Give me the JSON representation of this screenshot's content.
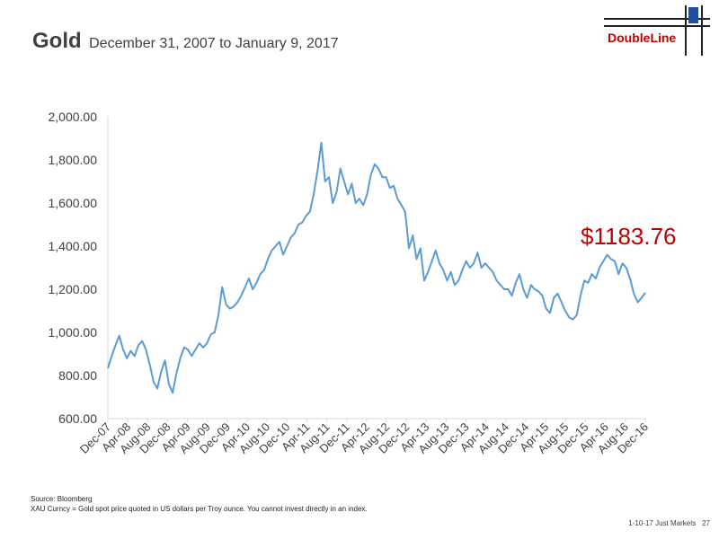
{
  "header": {
    "title": "Gold",
    "subtitle": "December 31, 2007 to January 9, 2017",
    "logo_text": "DoubleLine"
  },
  "colors": {
    "line": "#5b9bd5",
    "annotation": "#c00000",
    "logo_red": "#c00000",
    "logo_blue": "#1f4e9c"
  },
  "footer": {
    "source": "Source: Bloomberg",
    "note": "XAU Curncy = Gold spot price quoted in US dollars per Troy  ounce. You cannot invest directly in an index.",
    "page_label": "1-10-17 Just Markets",
    "page_number": "27"
  },
  "chart_data": {
    "type": "line",
    "title": "Gold",
    "xlabel": "",
    "ylabel": "",
    "ylim": [
      600,
      2000
    ],
    "yticks": [
      "600.00",
      "800.00",
      "1,000.00",
      "1,200.00",
      "1,400.00",
      "1,600.00",
      "1,800.00",
      "2,000.00"
    ],
    "xticks": [
      "Dec-07",
      "Apr-08",
      "Aug-08",
      "Dec-08",
      "Apr-09",
      "Aug-09",
      "Dec-09",
      "Apr-10",
      "Aug-10",
      "Dec-10",
      "Apr-11",
      "Aug-11",
      "Dec-11",
      "Apr-12",
      "Aug-12",
      "Dec-12",
      "Apr-13",
      "Aug-13",
      "Dec-13",
      "Apr-14",
      "Aug-14",
      "Dec-14",
      "Apr-15",
      "Aug-15",
      "Dec-15",
      "Apr-16",
      "Aug-16",
      "Dec-16"
    ],
    "grid": false,
    "annotation": "$1183.76",
    "series": [
      {
        "values": [
          834,
          890,
          940,
          985,
          920,
          880,
          915,
          890,
          940,
          960,
          920,
          850,
          770,
          740,
          820,
          870,
          760,
          720,
          810,
          880,
          930,
          920,
          890,
          920,
          950,
          930,
          950,
          990,
          1000,
          1080,
          1210,
          1130,
          1110,
          1120,
          1140,
          1170,
          1210,
          1250,
          1200,
          1230,
          1270,
          1290,
          1340,
          1380,
          1400,
          1420,
          1360,
          1400,
          1440,
          1460,
          1500,
          1510,
          1540,
          1560,
          1640,
          1750,
          1880,
          1700,
          1720,
          1600,
          1650,
          1760,
          1700,
          1640,
          1690,
          1600,
          1620,
          1590,
          1640,
          1730,
          1780,
          1760,
          1720,
          1720,
          1670,
          1680,
          1620,
          1590,
          1560,
          1390,
          1450,
          1340,
          1390,
          1240,
          1280,
          1330,
          1380,
          1320,
          1290,
          1240,
          1280,
          1220,
          1240,
          1290,
          1330,
          1300,
          1320,
          1370,
          1300,
          1320,
          1300,
          1280,
          1240,
          1220,
          1200,
          1200,
          1170,
          1230,
          1270,
          1200,
          1160,
          1220,
          1200,
          1190,
          1170,
          1110,
          1090,
          1160,
          1180,
          1140,
          1100,
          1070,
          1060,
          1080,
          1170,
          1240,
          1230,
          1270,
          1250,
          1300,
          1330,
          1360,
          1340,
          1330,
          1270,
          1320,
          1300,
          1250,
          1180,
          1140,
          1160,
          1183.76
        ]
      }
    ]
  }
}
